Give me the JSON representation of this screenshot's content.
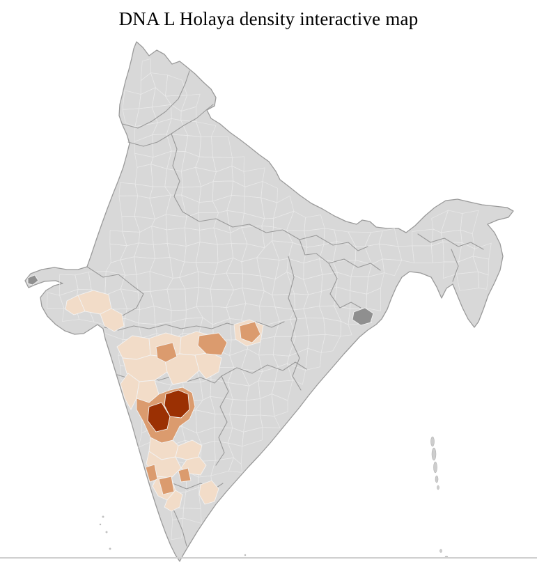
{
  "page": {
    "title": "DNA L Holaya density interactive map",
    "background": "#ffffff"
  },
  "map_data": {
    "type": "choropleth",
    "geography": "India — district-level map with state boundaries",
    "metric": "DNA L Holaya density",
    "levels": {
      "none": {
        "color": "#d8d8d8"
      },
      "low": {
        "color": "#f2dcc8"
      },
      "medium": {
        "color": "#db9b6e"
      },
      "high": {
        "color": "#9b3003"
      },
      "dark_gray": {
        "color": "#8f8f8f"
      }
    },
    "border_colors": {
      "state": "#999999",
      "district": "#e9e9e9",
      "outline": "#9a9a9a"
    },
    "regions": [
      {
        "id": "g1",
        "level": "low"
      },
      {
        "id": "g2",
        "level": "low"
      },
      {
        "id": "g3",
        "level": "low"
      },
      {
        "id": "m1",
        "level": "low"
      },
      {
        "id": "m2",
        "level": "low"
      },
      {
        "id": "m3",
        "level": "low"
      },
      {
        "id": "m4",
        "level": "low"
      },
      {
        "id": "m5",
        "level": "low"
      },
      {
        "id": "m6",
        "level": "low"
      },
      {
        "id": "m7",
        "level": "low"
      },
      {
        "id": "m8",
        "level": "low"
      },
      {
        "id": "e1",
        "level": "low"
      },
      {
        "id": "kl1",
        "level": "low"
      },
      {
        "id": "kl2",
        "level": "low"
      },
      {
        "id": "kl3",
        "level": "low"
      },
      {
        "id": "kl4",
        "level": "low"
      },
      {
        "id": "kl5",
        "level": "low"
      },
      {
        "id": "kl6",
        "level": "low"
      },
      {
        "id": "kl7",
        "level": "low"
      },
      {
        "id": "md1",
        "level": "medium"
      },
      {
        "id": "md2",
        "level": "medium"
      },
      {
        "id": "md3",
        "level": "medium"
      },
      {
        "id": "md4",
        "level": "medium"
      },
      {
        "id": "md5",
        "level": "medium"
      },
      {
        "id": "md6",
        "level": "medium"
      },
      {
        "id": "md7",
        "level": "medium"
      },
      {
        "id": "h1",
        "level": "high"
      },
      {
        "id": "h2",
        "level": "high"
      },
      {
        "id": "dg1",
        "level": "dark_gray"
      },
      {
        "id": "dg2",
        "level": "dark_gray"
      }
    ],
    "islands": [
      "Andaman & Nicobar chain (east)",
      "Lakshadweep dots (south-west)"
    ],
    "summary": "Highest density cluster in north Karnataka; medium patches around it and in south Maharashtra and south Karnataka; low density across Maharashtra, coastal Gujarat, one central-India patch and the southern peninsula; rest of India no data (gray)."
  },
  "chrome": {
    "bottom_divider_color": "#cfcfcf"
  }
}
